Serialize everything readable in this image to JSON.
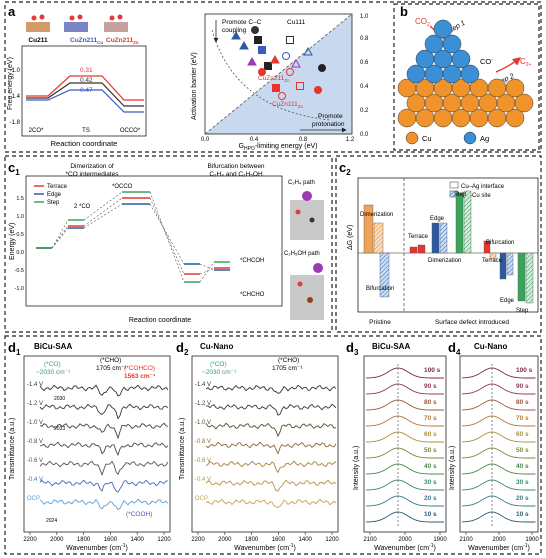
{
  "panel_labels": {
    "a": "a",
    "b": "b",
    "c1": "c",
    "c1_sub": "1",
    "c2": "c",
    "c2_sub": "2",
    "d1": "d",
    "d1_sub": "1",
    "d2": "d",
    "d2_sub": "2",
    "d3": "d",
    "d3_sub": "3",
    "d4": "d",
    "d4_sub": "4"
  },
  "a_left": {
    "ylabel": "Free energy (eV)",
    "xlabel": "Reaction coordinate",
    "x_ticks": [
      "2CO*",
      "TS",
      "OCCO*"
    ],
    "y_ticks": [
      "-1.0",
      "-1.4",
      "-1.8"
    ],
    "structures": [
      "Cu211",
      "CuZn211",
      "CuZn211"
    ],
    "struct_subs": [
      "",
      "Cu",
      "Zn"
    ],
    "barriers": [
      {
        "name": "CuZn211Zn",
        "value": "0.31",
        "color": "#e8352e"
      },
      {
        "name": "Cu211",
        "value": "0.42",
        "color": "#333333"
      },
      {
        "name": "CuZn211Cu",
        "value": "0.47",
        "color": "#3b5bbf"
      }
    ]
  },
  "a_right": {
    "ylabel": "Activation barrier (eV)",
    "xlabel": "G",
    "xlabel_sub": "HPO",
    "xlabel_rest": "-limiting energy (eV)",
    "x_ticks": [
      "0.0",
      "0.4",
      "0.8",
      "1.2"
    ],
    "y_ticks": [
      "0.0",
      "0.2",
      "0.4",
      "0.6",
      "0.8",
      "1.0"
    ],
    "annotations": [
      "Promote C–C",
      "coupling",
      "Promote",
      "protonation"
    ],
    "point_labels": [
      "Cu111",
      "CuZn211",
      "Zn",
      "CuZn111",
      "Zn"
    ]
  },
  "b": {
    "co2": "CO",
    "co2_sub": "2",
    "step1": "Step 1",
    "co": "CO",
    "co_sup": "-",
    "step2": "Step 2",
    "c2": "C",
    "c2_sub": "2+",
    "legend": [
      "Cu",
      "Ag"
    ]
  },
  "c1": {
    "ylabel": "Energy (eV)",
    "xlabel": "Reaction coordinate",
    "legend": [
      "Terrace",
      "Edge",
      "Step"
    ],
    "title1": "Dimerization of",
    "title1b": "*CO intermediates",
    "title2": "Bifurcation between",
    "title2b": "C₂H₄ and C₂H₅OH",
    "species": [
      "2 *CO",
      "*OCCO",
      "*CHCOH",
      "*CHCHO"
    ],
    "path_labels": [
      "C₂H₄ path",
      "C₂H₅OH path"
    ],
    "y_ticks": [
      "1.5",
      "1.0",
      "0.5",
      "0.0",
      "-0.5",
      "-1.0"
    ]
  },
  "c2": {
    "ylabel": "ΔG (eV)",
    "legend": [
      "Cu–Ag interface",
      "Cu–Cu site"
    ],
    "labels": [
      "Dimerization",
      "Bifurcation",
      "Terrace",
      "Edge",
      "Step",
      "Dimerization",
      "Bifurcation",
      "Terrace",
      "Edge",
      "Step"
    ],
    "xlabels": [
      "Pristine",
      "Surface defect introduced"
    ]
  },
  "d1": {
    "title": "BiCu-SAA",
    "ylabel": "Transmittance (a.u.)",
    "xlabel": "Wavenumber (cm",
    "xlabel_sup": "-1",
    "x_ticks": [
      "2200",
      "2000",
      "1800",
      "1600",
      "1400",
      "1200"
    ],
    "potentials": [
      "-1.4 V",
      "-1.2 V",
      "-1.0 V",
      "-0.8 V",
      "-0.6 V",
      "-0.4 V",
      "OCP"
    ],
    "annotations": [
      "(*CO)",
      "~2030 cm⁻¹",
      "(*CHO)",
      "1705 cm⁻¹",
      "(*COHCO)",
      "1563 cm⁻¹",
      "(*COOH)",
      "2030",
      "2033",
      "2024"
    ]
  },
  "d2": {
    "title": "Cu-Nano",
    "ylabel": "Transmittance (a.u.)",
    "xlabel": "Wavenumber (cm",
    "xlabel_sup": "-1",
    "x_ticks": [
      "2200",
      "2000",
      "1800",
      "1600",
      "1400",
      "1200"
    ],
    "potentials": [
      "-1.4 V",
      "-1.2 V",
      "-1.0 V",
      "-0.8 V",
      "-0.6 V",
      "-0.4 V",
      "OCP"
    ],
    "annotations": [
      "(*CO)",
      "~2030 cm⁻¹",
      "(*CHO)",
      "1705 cm⁻¹"
    ]
  },
  "d3": {
    "title": "BiCu-SAA",
    "ylabel": "Intensity (a.u.)",
    "xlabel": "Wavenumber (cm",
    "xlabel_sup": "-1",
    "x_ticks": [
      "2100",
      "2000",
      "1900"
    ],
    "times": [
      "100 s",
      "90 s",
      "80 s",
      "70 s",
      "60 s",
      "50 s",
      "40 s",
      "30 s",
      "20 s",
      "10 s"
    ]
  },
  "d4": {
    "title": "Cu-Nano",
    "ylabel": "Intensity (a.u.)",
    "xlabel": "Wavenumber (cm",
    "xlabel_sup": "-1",
    "x_ticks": [
      "2100",
      "2000",
      "1900"
    ],
    "times": [
      "100 s",
      "90 s",
      "80 s",
      "70 s",
      "60 s",
      "50 s",
      "40 s",
      "30 s",
      "20 s",
      "10 s"
    ]
  },
  "colors": {
    "terrace": "#e8352e",
    "edge": "#2c5aa0",
    "step": "#3aa35a",
    "cu": "#f0932b",
    "ag": "#3a8fd6"
  }
}
